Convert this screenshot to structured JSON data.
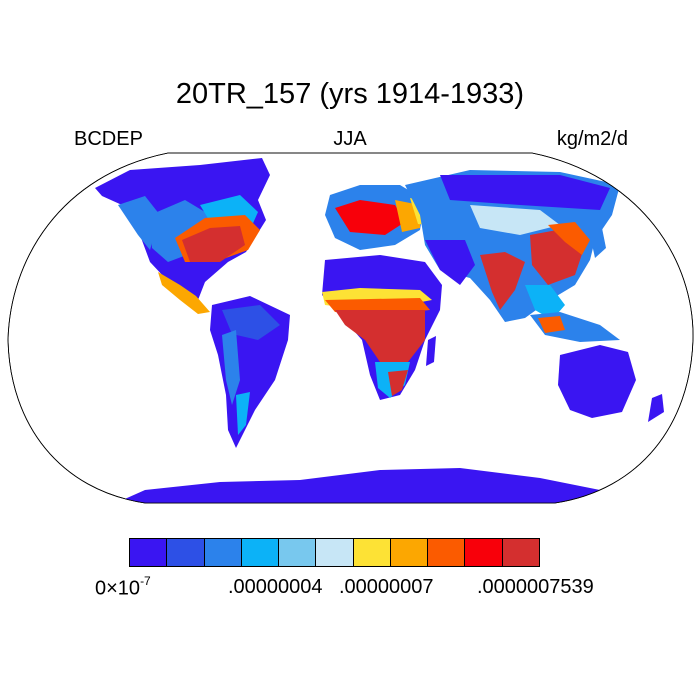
{
  "title": "20TR_157 (yrs 1914-1933)",
  "left_label": "BCDEP",
  "center_label": "JJA",
  "units": "kg/m2/d",
  "colorbar": {
    "colors": [
      "#3a15f2",
      "#2d50e6",
      "#2c82eb",
      "#0cb2f7",
      "#78c8ee",
      "#c7e6f6",
      "#fde235",
      "#fca701",
      "#fb5b00",
      "#f8000a",
      "#d42f2f"
    ],
    "tick_base": "0×10",
    "tick_exp": "-7",
    "tick_labels": [
      ".00000004",
      ".00000007",
      ".0000007539"
    ]
  },
  "map": {
    "projection": "Robinson",
    "palette": {
      "low": "#3a15f2",
      "mid": "#2d50e6",
      "blue": "#2c82eb",
      "cyan": "#0cb2f7",
      "light": "#78c8ee",
      "pale": "#c7e6f6",
      "yellow": "#fde235",
      "orange": "#fca701",
      "deeporange": "#fb5b00",
      "red": "#f8000a",
      "darkred": "#d42f2f"
    }
  }
}
